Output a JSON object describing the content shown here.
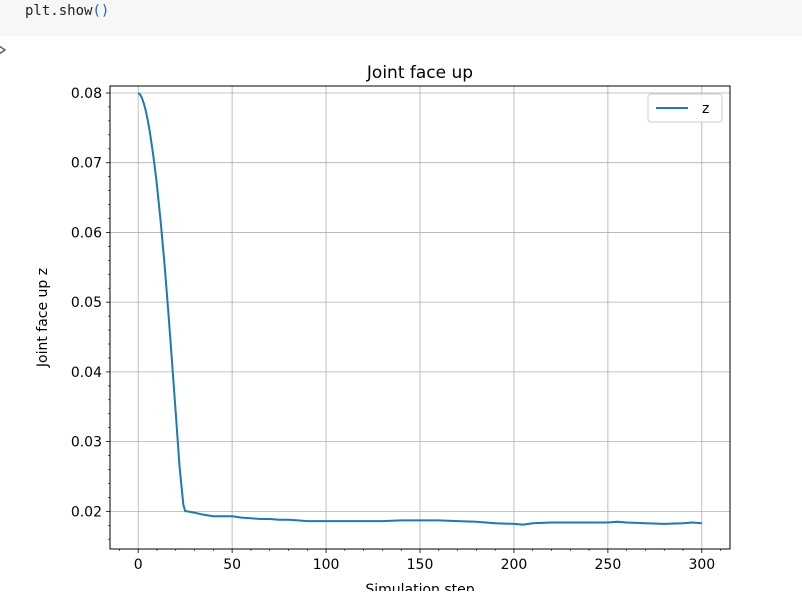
{
  "code_cell": {
    "code_before": "plt.show",
    "code_paren": "()"
  },
  "output": {
    "icon": "output-toggle-icon"
  },
  "chart_data": {
    "type": "line",
    "title": "Joint face up",
    "xlabel": "Simulation step",
    "ylabel": "Joint face up z",
    "xlim": [
      -15,
      315
    ],
    "ylim": [
      0.0146,
      0.081
    ],
    "xticks": [
      0,
      50,
      100,
      150,
      200,
      250,
      300
    ],
    "yticks": [
      0.02,
      0.03,
      0.04,
      0.05,
      0.06,
      0.07,
      0.08
    ],
    "xtick_labels": [
      "0",
      "50",
      "100",
      "150",
      "200",
      "250",
      "300"
    ],
    "ytick_labels": [
      "0.02",
      "0.03",
      "0.04",
      "0.05",
      "0.06",
      "0.07",
      "0.08"
    ],
    "grid": true,
    "legend_position": "upper right",
    "series": [
      {
        "name": "z",
        "color": "#1f77b4",
        "x": [
          0,
          1,
          2,
          3,
          4,
          5,
          6,
          7,
          8,
          9,
          10,
          12,
          14,
          16,
          18,
          20,
          22,
          24,
          25,
          26,
          28,
          30,
          35,
          40,
          45,
          50,
          55,
          60,
          65,
          70,
          75,
          80,
          85,
          90,
          95,
          100,
          110,
          120,
          130,
          140,
          150,
          160,
          170,
          180,
          190,
          200,
          205,
          210,
          220,
          230,
          240,
          250,
          255,
          260,
          270,
          280,
          290,
          295,
          300
        ],
        "y": [
          0.08,
          0.0798,
          0.0793,
          0.0785,
          0.0775,
          0.0762,
          0.0747,
          0.073,
          0.0711,
          0.069,
          0.0667,
          0.0615,
          0.0555,
          0.0488,
          0.0415,
          0.034,
          0.0265,
          0.021,
          0.02,
          0.02,
          0.0199,
          0.0198,
          0.0195,
          0.0193,
          0.0193,
          0.0193,
          0.0191,
          0.019,
          0.0189,
          0.0189,
          0.0188,
          0.0188,
          0.0187,
          0.0186,
          0.0186,
          0.0186,
          0.0186,
          0.0186,
          0.0186,
          0.0187,
          0.0187,
          0.0187,
          0.0186,
          0.0185,
          0.0183,
          0.0182,
          0.0181,
          0.0183,
          0.0184,
          0.0184,
          0.0184,
          0.0184,
          0.0185,
          0.0184,
          0.0183,
          0.0182,
          0.0183,
          0.0184,
          0.0183
        ]
      }
    ]
  }
}
